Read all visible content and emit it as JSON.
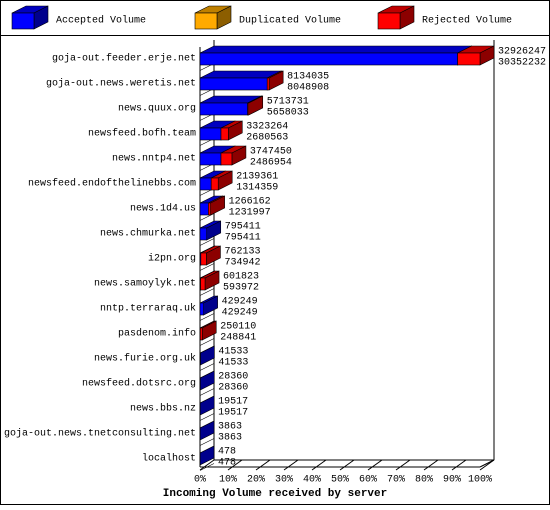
{
  "chart_data": {
    "type": "bar3d",
    "x_label": "Incoming Volume received by server",
    "categories": [
      "goja-out.feeder.erje.net",
      "goja-out.news.weretis.net",
      "news.quux.org",
      "newsfeed.bofh.team",
      "news.nntp4.net",
      "newsfeed.endofthelinebbs.com",
      "news.1d4.us",
      "news.chmurka.net",
      "i2pn.org",
      "news.samoylyk.net",
      "nntp.terraraq.uk",
      "pasdenom.info",
      "news.furie.org.uk",
      "newsfeed.dotsrc.org",
      "news.bbs.nz",
      "goja-out.news.tnetconsulting.net",
      "localhost"
    ],
    "series": [
      {
        "name": "Accepted Volume",
        "color": "#0000ff",
        "values": [
          92,
          24,
          17,
          7.5,
          7.5,
          4,
          3,
          2.4,
          0.3,
          0.2,
          1.3,
          0.1,
          0.13,
          0.09,
          0.06,
          0.01,
          0.001
        ]
      },
      {
        "name": "Duplicated Volume",
        "color": "#ffaa00",
        "values": [
          0,
          0,
          0,
          0,
          0,
          0,
          0,
          0,
          0,
          0,
          0,
          0,
          0,
          0,
          0,
          0,
          0
        ]
      },
      {
        "name": "Rejected Volume",
        "color": "#ff0000",
        "values": [
          8,
          0.7,
          0.4,
          2.6,
          3.9,
          2.5,
          0.8,
          0,
          2,
          1.6,
          0,
          0.7,
          0,
          0,
          0,
          0,
          0
        ]
      }
    ],
    "bar_labels": [
      [
        32926247,
        30352232
      ],
      [
        8134035,
        8048908
      ],
      [
        5713731,
        5658033
      ],
      [
        3323264,
        2680563
      ],
      [
        3747450,
        2486954
      ],
      [
        2139361,
        1314359
      ],
      [
        1266162,
        1231997
      ],
      [
        795411,
        795411
      ],
      [
        762133,
        734942
      ],
      [
        601823,
        593972
      ],
      [
        429249,
        429249
      ],
      [
        250110,
        248841
      ],
      [
        41533,
        41533
      ],
      [
        28360,
        28360
      ],
      [
        19517,
        19517
      ],
      [
        3863,
        3863
      ],
      [
        478,
        478
      ]
    ],
    "xlim": [
      0,
      100
    ],
    "xticks": [
      {
        "value": 0,
        "label": "0%"
      },
      {
        "value": 10,
        "label": "10%"
      },
      {
        "value": 20,
        "label": "20%"
      },
      {
        "value": 30,
        "label": "30%"
      },
      {
        "value": 40,
        "label": "40%"
      },
      {
        "value": 50,
        "label": "50%"
      },
      {
        "value": 60,
        "label": "60%"
      },
      {
        "value": 70,
        "label": "70%"
      },
      {
        "value": 80,
        "label": "80%"
      },
      {
        "value": 90,
        "label": "90%"
      },
      {
        "value": 100,
        "label": "100%"
      }
    ]
  }
}
